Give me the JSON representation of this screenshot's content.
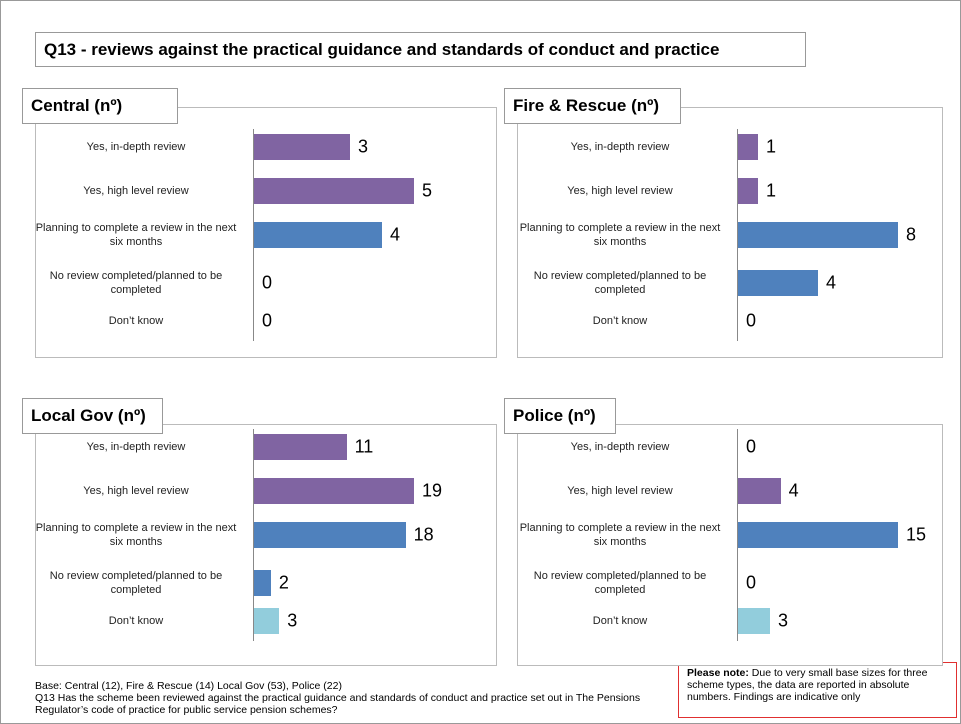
{
  "title": "Q13 - reviews against the practical guidance and standards of conduct and practice",
  "chart_data": [
    {
      "type": "hbar",
      "title": "Central  (nº)",
      "categories": [
        "Yes, in-depth review",
        "Yes, high level review",
        "Planning to complete a review in the next six months",
        "No review completed/planned to be completed",
        "Don’t know"
      ],
      "values": [
        3,
        5,
        4,
        0,
        0
      ],
      "colors": [
        "#8064a2",
        "#8064a2",
        "#4f81bd",
        "#4f81bd",
        "#92cddc"
      ]
    },
    {
      "type": "hbar",
      "title": "Fire & Rescue (nº)",
      "categories": [
        "Yes, in-depth review",
        "Yes, high level review",
        "Planning to complete a review in the next six months",
        "No review completed/planned to be completed",
        "Don’t know"
      ],
      "values": [
        1,
        1,
        8,
        4,
        0
      ],
      "colors": [
        "#8064a2",
        "#8064a2",
        "#4f81bd",
        "#4f81bd",
        "#92cddc"
      ]
    },
    {
      "type": "hbar",
      "title": "Local Gov (nº)",
      "categories": [
        "Yes, in-depth review",
        "Yes, high level review",
        "Planning to complete a review in the next six months",
        "No review completed/planned to be completed",
        "Don’t know"
      ],
      "values": [
        11,
        19,
        18,
        2,
        3
      ],
      "colors": [
        "#8064a2",
        "#8064a2",
        "#4f81bd",
        "#4f81bd",
        "#92cddc"
      ]
    },
    {
      "type": "hbar",
      "title": "Police (nº)",
      "categories": [
        "Yes, in-depth review",
        "Yes, high level review",
        "Planning to complete a review in the next six months",
        "No review completed/planned to be completed",
        "Don’t know"
      ],
      "values": [
        0,
        4,
        15,
        0,
        3
      ],
      "colors": [
        "#8064a2",
        "#8064a2",
        "#4f81bd",
        "#4f81bd",
        "#92cddc"
      ]
    }
  ],
  "base": "Base: Central (12), Fire & Rescue (14) Local Gov (53), Police (22)",
  "question": "Q13 Has the scheme been reviewed against the practical guidance and standards of conduct and practice set out in The Pensions Regulator’s code of practice for public service pension schemes?",
  "note_label": "Please note:",
  "note_text": "Due to very small base sizes  for three scheme types, the data are reported in absolute numbers.  Findings are indicative only"
}
